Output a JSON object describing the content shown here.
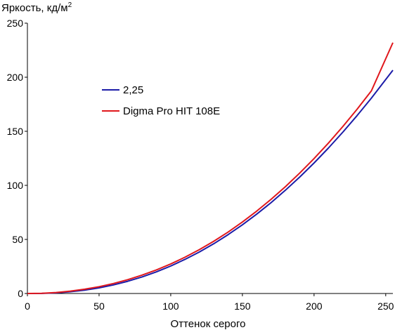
{
  "chart_data": {
    "type": "line",
    "ylabel": "Яркость, кд/м",
    "ylabel_superscript": "2",
    "xlabel": "Оттенок серого",
    "xlim": [
      0,
      255
    ],
    "ylim": [
      0,
      250
    ],
    "x_ticks": [
      0,
      50,
      100,
      150,
      200,
      250
    ],
    "y_ticks": [
      0,
      50,
      100,
      150,
      200,
      250
    ],
    "grid": false,
    "legend_position": "upper-left",
    "series": [
      {
        "name": "2,25",
        "color": "#1c1ca8",
        "x": [
          0,
          10,
          20,
          30,
          40,
          50,
          60,
          70,
          80,
          90,
          100,
          110,
          120,
          130,
          140,
          150,
          160,
          170,
          180,
          190,
          200,
          210,
          220,
          230,
          240,
          255
        ],
        "y": [
          0.0,
          0.1,
          0.6,
          1.6,
          3.1,
          5.2,
          7.9,
          11.3,
          15.3,
          20.0,
          25.4,
          31.6,
          38.4,
          46.0,
          54.4,
          63.5,
          73.4,
          84.0,
          95.5,
          107.7,
          120.7,
          134.5,
          149.1,
          164.5,
          180.7,
          206.5
        ]
      },
      {
        "name": "Digma Pro HIT 108E",
        "color": "#e0171c",
        "x": [
          0,
          10,
          20,
          30,
          40,
          50,
          60,
          70,
          80,
          90,
          100,
          110,
          120,
          130,
          140,
          150,
          160,
          170,
          180,
          190,
          200,
          210,
          220,
          230,
          240,
          255
        ],
        "y": [
          0.0,
          0.2,
          0.9,
          2.2,
          4.0,
          6.3,
          9.2,
          12.8,
          17.0,
          21.8,
          27.3,
          33.6,
          40.6,
          48.3,
          56.8,
          66.1,
          76.2,
          87.1,
          98.8,
          111.4,
          124.8,
          139.1,
          154.3,
          170.4,
          187.4,
          232.0
        ]
      }
    ]
  }
}
